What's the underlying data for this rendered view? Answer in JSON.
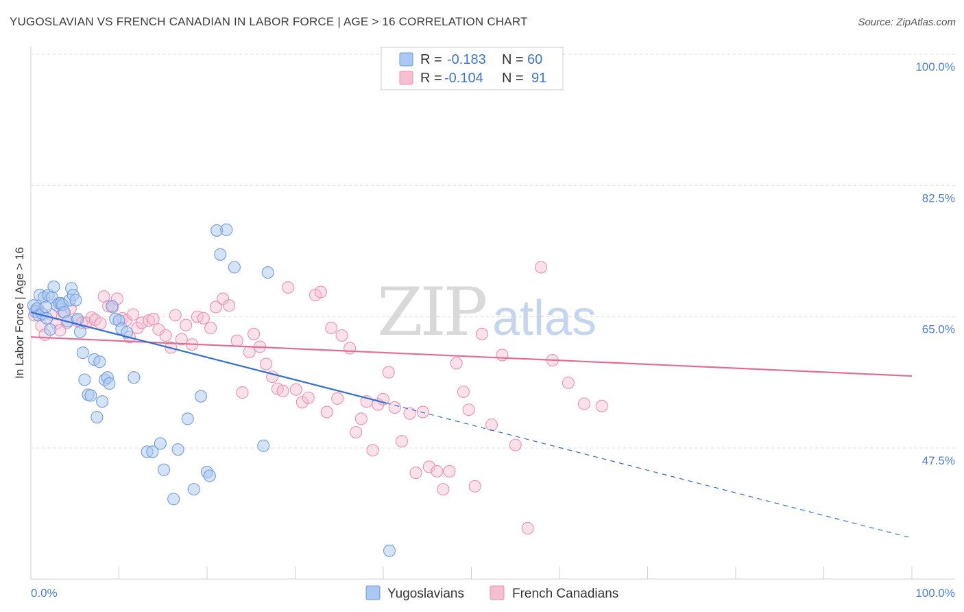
{
  "title": "YUGOSLAVIAN VS FRENCH CANADIAN IN LABOR FORCE | AGE > 16 CORRELATION CHART",
  "source": "Source: ZipAtlas.com",
  "watermark": {
    "zip": "ZIP",
    "atlas": "atlas"
  },
  "legend_top": [
    {
      "r_label": "R =",
      "r_value": "-0.183",
      "n_label": "N =",
      "n_value": "60"
    },
    {
      "r_label": "R =",
      "r_value": "-0.104",
      "n_label": "N =",
      "n_value": "91"
    }
  ],
  "colors": {
    "yugoslavians_fill": "#aac8f2",
    "yugoslavians_stroke": "#6f9de0",
    "yugoslavians_line": "#2f6fd6",
    "french_fill": "#f6bfd1",
    "french_stroke": "#ec8fae",
    "french_line": "#e46a93",
    "tick_label": "#4a7fd4",
    "grid": "#dddddd"
  },
  "chart_data": {
    "type": "scatter",
    "title": "YUGOSLAVIAN VS FRENCH CANADIAN IN LABOR FORCE | AGE > 16 CORRELATION CHART",
    "xlabel": "",
    "ylabel": "In Labor Force | Age > 16",
    "xlim": [
      0,
      100
    ],
    "ylim": [
      29.5,
      102
    ],
    "x_tick_labels": [
      "0.0%",
      "100.0%"
    ],
    "y_ticks": [
      47.5,
      65.0,
      82.5,
      100.0
    ],
    "y_tick_labels": [
      "47.5%",
      "65.0%",
      "82.5%",
      "100.0%"
    ],
    "grid": true,
    "legend_position": "bottom-center",
    "series": [
      {
        "name": "Yugoslavians",
        "r": -0.183,
        "n": 60,
        "trend": {
          "x0": 0,
          "y0": 65.6,
          "x1": 40.3,
          "y1": 53.5,
          "dashed_to_x": 100,
          "dashed_to_y": 35.5
        },
        "points": [
          [
            0.3,
            66.5
          ],
          [
            0.5,
            65.7
          ],
          [
            0.7,
            66.1
          ],
          [
            0.9,
            65.2
          ],
          [
            1.0,
            67.9
          ],
          [
            1.3,
            65.4
          ],
          [
            1.5,
            67.6
          ],
          [
            1.7,
            66.3
          ],
          [
            1.8,
            64.8
          ],
          [
            2.0,
            67.9
          ],
          [
            2.2,
            63.3
          ],
          [
            2.4,
            67.6
          ],
          [
            2.6,
            69.0
          ],
          [
            3.0,
            66.5
          ],
          [
            3.2,
            66.8
          ],
          [
            3.4,
            66.8
          ],
          [
            3.6,
            66.6
          ],
          [
            3.8,
            65.6
          ],
          [
            4.2,
            64.4
          ],
          [
            4.4,
            67.2
          ],
          [
            4.6,
            68.8
          ],
          [
            4.8,
            67.9
          ],
          [
            5.1,
            67.2
          ],
          [
            5.3,
            64.7
          ],
          [
            5.6,
            63.0
          ],
          [
            5.9,
            60.2
          ],
          [
            6.1,
            56.6
          ],
          [
            6.5,
            54.6
          ],
          [
            6.8,
            54.5
          ],
          [
            7.2,
            59.3
          ],
          [
            7.5,
            51.6
          ],
          [
            7.8,
            59.0
          ],
          [
            8.1,
            53.7
          ],
          [
            8.4,
            56.6
          ],
          [
            8.7,
            56.9
          ],
          [
            8.9,
            56.1
          ],
          [
            9.2,
            66.4
          ],
          [
            9.6,
            64.7
          ],
          [
            10.0,
            64.5
          ],
          [
            10.3,
            63.4
          ],
          [
            10.9,
            62.9
          ],
          [
            11.7,
            56.9
          ],
          [
            13.2,
            47.0
          ],
          [
            13.8,
            47.0
          ],
          [
            14.7,
            48.1
          ],
          [
            15.1,
            44.6
          ],
          [
            16.2,
            40.7
          ],
          [
            16.7,
            47.3
          ],
          [
            17.8,
            51.4
          ],
          [
            18.5,
            42.0
          ],
          [
            19.3,
            54.4
          ],
          [
            20.0,
            44.3
          ],
          [
            20.3,
            43.8
          ],
          [
            21.1,
            76.5
          ],
          [
            21.5,
            73.3
          ],
          [
            22.2,
            76.6
          ],
          [
            23.1,
            71.6
          ],
          [
            26.4,
            47.8
          ],
          [
            26.9,
            70.9
          ],
          [
            40.7,
            33.8
          ]
        ]
      },
      {
        "name": "French Canadians",
        "r": -0.104,
        "n": 91,
        "trend": {
          "x0": 0,
          "y0": 62.3,
          "x1": 100,
          "y1": 57.1
        },
        "points": [
          [
            0.4,
            65.2
          ],
          [
            0.8,
            66.1
          ],
          [
            1.2,
            63.8
          ],
          [
            1.6,
            62.6
          ],
          [
            2.3,
            65.3
          ],
          [
            2.9,
            64.1
          ],
          [
            3.3,
            63.2
          ],
          [
            3.7,
            65.6
          ],
          [
            4.1,
            64.2
          ],
          [
            4.5,
            66.1
          ],
          [
            5.2,
            64.5
          ],
          [
            5.8,
            64.2
          ],
          [
            6.3,
            64.2
          ],
          [
            6.9,
            64.9
          ],
          [
            7.3,
            64.6
          ],
          [
            7.9,
            64.1
          ],
          [
            8.3,
            67.7
          ],
          [
            8.8,
            66.4
          ],
          [
            9.3,
            66.3
          ],
          [
            9.8,
            67.4
          ],
          [
            10.4,
            64.8
          ],
          [
            10.8,
            64.5
          ],
          [
            11.2,
            62.3
          ],
          [
            11.6,
            65.3
          ],
          [
            12.1,
            63.5
          ],
          [
            12.6,
            64.2
          ],
          [
            13.4,
            64.5
          ],
          [
            13.9,
            64.7
          ],
          [
            14.5,
            63.3
          ],
          [
            15.3,
            62.5
          ],
          [
            15.9,
            60.9
          ],
          [
            16.4,
            65.2
          ],
          [
            17.1,
            62.0
          ],
          [
            17.6,
            63.9
          ],
          [
            18.3,
            61.3
          ],
          [
            18.9,
            65.0
          ],
          [
            19.6,
            64.8
          ],
          [
            20.4,
            63.5
          ],
          [
            21.0,
            66.3
          ],
          [
            21.8,
            67.4
          ],
          [
            22.5,
            66.5
          ],
          [
            23.4,
            61.8
          ],
          [
            24.0,
            54.9
          ],
          [
            24.8,
            60.3
          ],
          [
            25.3,
            62.7
          ],
          [
            26.0,
            61.0
          ],
          [
            26.7,
            58.7
          ],
          [
            27.4,
            57.0
          ],
          [
            28.0,
            55.4
          ],
          [
            28.6,
            55.1
          ],
          [
            29.2,
            68.9
          ],
          [
            30.1,
            55.3
          ],
          [
            30.8,
            53.6
          ],
          [
            31.5,
            54.2
          ],
          [
            32.3,
            67.9
          ],
          [
            32.9,
            68.3
          ],
          [
            33.6,
            52.3
          ],
          [
            34.1,
            63.5
          ],
          [
            34.8,
            54.1
          ],
          [
            35.3,
            62.5
          ],
          [
            36.2,
            60.8
          ],
          [
            36.9,
            49.6
          ],
          [
            37.5,
            51.4
          ],
          [
            38.1,
            53.7
          ],
          [
            38.8,
            47.2
          ],
          [
            39.4,
            53.3
          ],
          [
            40.0,
            54.0
          ],
          [
            40.6,
            57.6
          ],
          [
            41.3,
            52.9
          ],
          [
            42.1,
            48.4
          ],
          [
            43.0,
            52.1
          ],
          [
            43.7,
            44.2
          ],
          [
            44.5,
            52.3
          ],
          [
            45.2,
            45.0
          ],
          [
            46.1,
            44.4
          ],
          [
            46.8,
            42.0
          ],
          [
            47.5,
            44.4
          ],
          [
            48.3,
            58.8
          ],
          [
            49.1,
            55.0
          ],
          [
            49.7,
            52.6
          ],
          [
            50.4,
            42.4
          ],
          [
            51.2,
            62.7
          ],
          [
            52.3,
            50.6
          ],
          [
            53.5,
            59.9
          ],
          [
            55.0,
            47.9
          ],
          [
            56.4,
            36.8
          ],
          [
            57.9,
            71.6
          ],
          [
            59.2,
            59.2
          ],
          [
            61.0,
            56.2
          ],
          [
            62.8,
            53.4
          ],
          [
            64.8,
            53.1
          ]
        ]
      }
    ]
  },
  "bottom_legend": [
    "Yugoslavians",
    "French Canadians"
  ]
}
